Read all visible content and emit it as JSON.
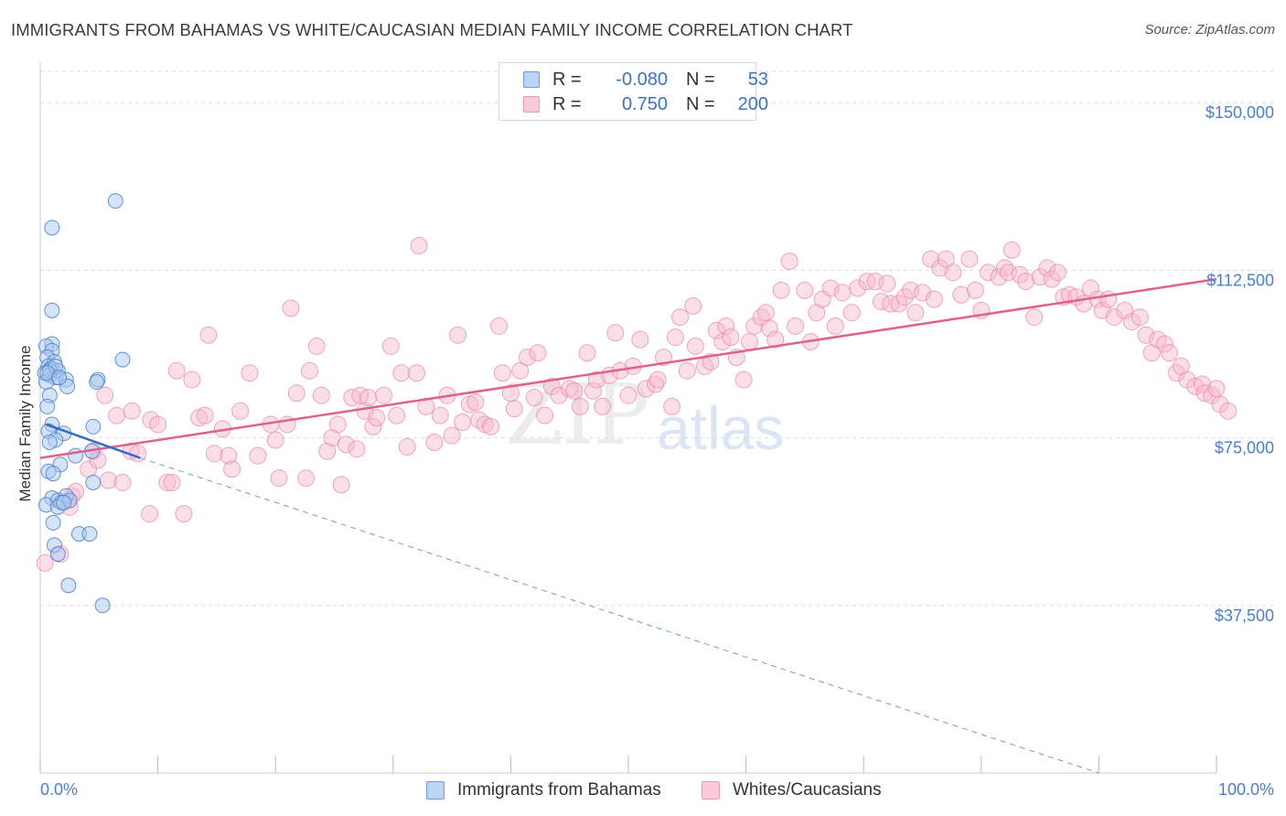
{
  "header": {
    "title": "IMMIGRANTS FROM BAHAMAS VS WHITE/CAUCASIAN MEDIAN FAMILY INCOME CORRELATION CHART",
    "source": "Source: ZipAtlas.com"
  },
  "watermark": {
    "zip": "ZIP",
    "atlas": "atlas"
  },
  "legend": {
    "row1": {
      "r_label": "R =",
      "r_value": "-0.080",
      "n_label": "N =",
      "n_value": "53"
    },
    "row2": {
      "r_label": "R =",
      "r_value": "0.750",
      "n_label": "N =",
      "n_value": "200"
    }
  },
  "bottom_legend": {
    "series1": "Immigrants from Bahamas",
    "series2": "Whites/Caucasians"
  },
  "colors": {
    "blue_fill": "#a9c8f0",
    "blue_stroke": "#4a80cc",
    "blue_line": "#2f6ec9",
    "pink_fill": "#f6b9cc",
    "pink_stroke": "#e88aa8",
    "pink_line": "#e0608e",
    "axis_text": "#4a7fd0",
    "grid": "#dddddd"
  },
  "chart_data": {
    "type": "scatter",
    "title": "IMMIGRANTS FROM BAHAMAS VS WHITE/CAUCASIAN MEDIAN FAMILY INCOME CORRELATION CHART",
    "xlabel": "",
    "ylabel": "Median Family Income",
    "x_tick_labels": [
      "0.0%",
      "100.0%"
    ],
    "y_tick_labels": [
      "$37,500",
      "$75,000",
      "$112,500",
      "$150,000"
    ],
    "y_ticks": [
      37500,
      75000,
      112500,
      150000
    ],
    "xlim": [
      0,
      100
    ],
    "ylim": [
      0,
      157000
    ],
    "grid": true,
    "legend_position": "top-center",
    "series": [
      {
        "name": "Immigrants from Bahamas",
        "r": -0.08,
        "n": 53,
        "trend": {
          "x": [
            0.5,
            8.5
          ],
          "y": [
            78000,
            70500
          ],
          "extended_to": [
            90,
            0
          ]
        },
        "points": [
          [
            1,
            96
          ],
          [
            0.5,
            95.5
          ],
          [
            1,
            94.5
          ],
          [
            0.6,
            93
          ],
          [
            1.2,
            92
          ],
          [
            0.7,
            91
          ],
          [
            0.9,
            90.5
          ],
          [
            1.5,
            90
          ],
          [
            0.4,
            89.5
          ],
          [
            0.8,
            89
          ],
          [
            1.3,
            88.5
          ],
          [
            2.2,
            88
          ],
          [
            0.5,
            87.5
          ],
          [
            4.9,
            88
          ],
          [
            4.8,
            87.5
          ],
          [
            2.3,
            86.5
          ],
          [
            7,
            92.5
          ],
          [
            0.8,
            84.5
          ],
          [
            0.6,
            82
          ],
          [
            1,
            78
          ],
          [
            0.7,
            76.5
          ],
          [
            2,
            76
          ],
          [
            1.3,
            74.5
          ],
          [
            0.8,
            74
          ],
          [
            4.5,
            77.5
          ],
          [
            3,
            71
          ],
          [
            4.4,
            72
          ],
          [
            1.7,
            69
          ],
          [
            0.7,
            67.5
          ],
          [
            1.1,
            67
          ],
          [
            4.5,
            65
          ],
          [
            1,
            61.5
          ],
          [
            2.2,
            62
          ],
          [
            1.5,
            61
          ],
          [
            1.8,
            60.5
          ],
          [
            2.5,
            61
          ],
          [
            0.5,
            60
          ],
          [
            1.5,
            59.5
          ],
          [
            1.1,
            56
          ],
          [
            3.3,
            53.5
          ],
          [
            4.2,
            53.5
          ],
          [
            1.2,
            51
          ],
          [
            1.5,
            49
          ],
          [
            2.4,
            42
          ],
          [
            5.3,
            37.5
          ],
          [
            6.4,
            128
          ],
          [
            1,
            122
          ],
          [
            1,
            103.5
          ],
          [
            0.8,
            90
          ],
          [
            1.3,
            91
          ],
          [
            0.6,
            89.5
          ],
          [
            1.6,
            88.5
          ],
          [
            2,
            60.5
          ]
        ]
      },
      {
        "name": "Whites/Caucasians",
        "r": 0.75,
        "n": 200,
        "trend": {
          "x": [
            0,
            100
          ],
          "y": [
            70500,
            110500
          ]
        },
        "points": [
          [
            0.4,
            47
          ],
          [
            1.7,
            49
          ],
          [
            2.5,
            59.5
          ],
          [
            2.7,
            62
          ],
          [
            3,
            63
          ],
          [
            4.1,
            68
          ],
          [
            4.5,
            72
          ],
          [
            4.9,
            70
          ],
          [
            5.5,
            84.5
          ],
          [
            5.8,
            65.5
          ],
          [
            6.5,
            80
          ],
          [
            7,
            65
          ],
          [
            7.7,
            72
          ],
          [
            7.8,
            81
          ],
          [
            8.3,
            71.5
          ],
          [
            9.4,
            79
          ],
          [
            9.3,
            58
          ],
          [
            10,
            78
          ],
          [
            10.8,
            65
          ],
          [
            11.2,
            65
          ],
          [
            11.6,
            90
          ],
          [
            12.2,
            58
          ],
          [
            12.9,
            88
          ],
          [
            13.5,
            79.5
          ],
          [
            14,
            80
          ],
          [
            14.3,
            98
          ],
          [
            14.8,
            71.5
          ],
          [
            15.5,
            77
          ],
          [
            16,
            71
          ],
          [
            16.3,
            68
          ],
          [
            17,
            81
          ],
          [
            17.8,
            89.5
          ],
          [
            18.5,
            71
          ],
          [
            19.6,
            78
          ],
          [
            20,
            74.5
          ],
          [
            20.3,
            66
          ],
          [
            21,
            78
          ],
          [
            21.3,
            104
          ],
          [
            21.8,
            85
          ],
          [
            22.6,
            66
          ],
          [
            22.9,
            90
          ],
          [
            23.5,
            95.5
          ],
          [
            23.9,
            84.5
          ],
          [
            24.4,
            72
          ],
          [
            24.8,
            75
          ],
          [
            25.3,
            78
          ],
          [
            25.6,
            64.5
          ],
          [
            26,
            73.5
          ],
          [
            26.5,
            84
          ],
          [
            26.9,
            72.5
          ],
          [
            27.2,
            84.5
          ],
          [
            27.6,
            81
          ],
          [
            27.9,
            84
          ],
          [
            28.3,
            77.5
          ],
          [
            28.6,
            79.5
          ],
          [
            29.2,
            84.5
          ],
          [
            29.8,
            95.5
          ],
          [
            30.3,
            80
          ],
          [
            30.7,
            89.5
          ],
          [
            31.2,
            73
          ],
          [
            32,
            89.5
          ],
          [
            32.2,
            118
          ],
          [
            32.8,
            82
          ],
          [
            33.5,
            74
          ],
          [
            34,
            80
          ],
          [
            34.6,
            84.5
          ],
          [
            35,
            75.5
          ],
          [
            35.5,
            98
          ],
          [
            35.9,
            78.5
          ],
          [
            36.5,
            82.5
          ],
          [
            37,
            83
          ],
          [
            37.3,
            79
          ],
          [
            37.8,
            78
          ],
          [
            38.3,
            77.5
          ],
          [
            39,
            100
          ],
          [
            39.3,
            89.5
          ],
          [
            40,
            85
          ],
          [
            40.3,
            81.5
          ],
          [
            40.8,
            90
          ],
          [
            41.4,
            93
          ],
          [
            42,
            84
          ],
          [
            42.3,
            94
          ],
          [
            42.9,
            80
          ],
          [
            43.5,
            86.5
          ],
          [
            44.1,
            84.5
          ],
          [
            45,
            86
          ],
          [
            45.4,
            85.5
          ],
          [
            45.9,
            82
          ],
          [
            46.5,
            94
          ],
          [
            47,
            85.5
          ],
          [
            47.3,
            88
          ],
          [
            47.8,
            82
          ],
          [
            48.4,
            89
          ],
          [
            48.9,
            98.5
          ],
          [
            49.3,
            90
          ],
          [
            50,
            84.5
          ],
          [
            50.4,
            91
          ],
          [
            51,
            97
          ],
          [
            51.5,
            86
          ],
          [
            52.3,
            87
          ],
          [
            52.5,
            88
          ],
          [
            53,
            93
          ],
          [
            53.7,
            82
          ],
          [
            54,
            97.5
          ],
          [
            54.4,
            102
          ],
          [
            55,
            90
          ],
          [
            55.5,
            104.5
          ],
          [
            55.7,
            95.5
          ],
          [
            56.5,
            91
          ],
          [
            57,
            92
          ],
          [
            57.5,
            99
          ],
          [
            58,
            96.5
          ],
          [
            58.3,
            100
          ],
          [
            58.7,
            97.5
          ],
          [
            59.2,
            93
          ],
          [
            59.8,
            88
          ],
          [
            60.3,
            96.5
          ],
          [
            60.7,
            100
          ],
          [
            61.3,
            102
          ],
          [
            61.7,
            103
          ],
          [
            62,
            99.5
          ],
          [
            62.5,
            97
          ],
          [
            63,
            108
          ],
          [
            63.7,
            114.5
          ],
          [
            64.2,
            100
          ],
          [
            65,
            108
          ],
          [
            65.5,
            96.5
          ],
          [
            66,
            103
          ],
          [
            66.5,
            106
          ],
          [
            67.2,
            108.5
          ],
          [
            67.6,
            100
          ],
          [
            68.2,
            107.5
          ],
          [
            69,
            103
          ],
          [
            69.5,
            108.5
          ],
          [
            70.3,
            110
          ],
          [
            71,
            110
          ],
          [
            71.5,
            105.5
          ],
          [
            72,
            109.5
          ],
          [
            72.3,
            105
          ],
          [
            73,
            105
          ],
          [
            73.5,
            106.5
          ],
          [
            74,
            108
          ],
          [
            74.4,
            103
          ],
          [
            75,
            107.5
          ],
          [
            75.7,
            115
          ],
          [
            76,
            106
          ],
          [
            76.5,
            113
          ],
          [
            77,
            115
          ],
          [
            77.6,
            112
          ],
          [
            78.3,
            107
          ],
          [
            79,
            115
          ],
          [
            79.5,
            108
          ],
          [
            80,
            103.5
          ],
          [
            80.6,
            112
          ],
          [
            81.5,
            111
          ],
          [
            82,
            113
          ],
          [
            82.3,
            112
          ],
          [
            82.6,
            117
          ],
          [
            83.3,
            111.5
          ],
          [
            83.8,
            110
          ],
          [
            84.5,
            102
          ],
          [
            85,
            111
          ],
          [
            85.6,
            113
          ],
          [
            86,
            110.5
          ],
          [
            86.5,
            112
          ],
          [
            87,
            106.5
          ],
          [
            87.5,
            107
          ],
          [
            88.1,
            106.5
          ],
          [
            88.7,
            105
          ],
          [
            89.3,
            108.5
          ],
          [
            89.9,
            106
          ],
          [
            90.3,
            103.5
          ],
          [
            90.8,
            106
          ],
          [
            91.3,
            102
          ],
          [
            92.2,
            103.5
          ],
          [
            92.8,
            101
          ],
          [
            93.5,
            102
          ],
          [
            94,
            98
          ],
          [
            94.5,
            94
          ],
          [
            95,
            97
          ],
          [
            95.6,
            96
          ],
          [
            96,
            94
          ],
          [
            96.6,
            89.5
          ],
          [
            97,
            91
          ],
          [
            97.5,
            88
          ],
          [
            98.2,
            86.5
          ],
          [
            98.8,
            87
          ],
          [
            99,
            85
          ],
          [
            99.6,
            84.5
          ],
          [
            100,
            86
          ],
          [
            100.3,
            82.5
          ],
          [
            101,
            81
          ]
        ]
      }
    ]
  }
}
